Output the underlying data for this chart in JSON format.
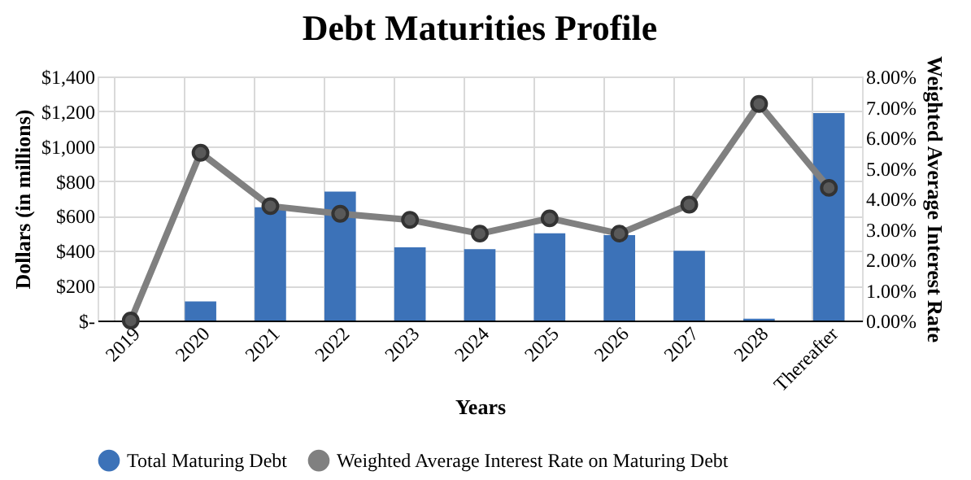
{
  "chart_data": {
    "type": "bar",
    "title": "Debt Maturities Profile",
    "xlabel": "Years",
    "ylabel": "Dollars (in millions)",
    "y2label": "Weighted Average Interest Rate",
    "categories": [
      "2019",
      "2020",
      "2021",
      "2022",
      "2023",
      "2024",
      "2025",
      "2026",
      "2027",
      "2028",
      "Thereafter"
    ],
    "series": [
      {
        "name": "Total Maturing Debt",
        "color": "#3c72b8",
        "values": [
          0,
          110,
          650,
          740,
          420,
          410,
          500,
          490,
          400,
          10,
          1190
        ]
      },
      {
        "name": "Weighted Average Interest Rate on Maturing Debt",
        "type": "line",
        "axis": "y2",
        "color": "#808080",
        "marker": "circle",
        "values": [
          0,
          5.5,
          3.75,
          3.5,
          3.3,
          2.85,
          3.35,
          2.85,
          3.8,
          7.1,
          4.35
        ]
      }
    ],
    "ylim": [
      0,
      1400
    ],
    "yticks": [
      {
        "value": 0,
        "label": "$-"
      },
      {
        "value": 200,
        "label": "$200"
      },
      {
        "value": 400,
        "label": "$400"
      },
      {
        "value": 600,
        "label": "$600"
      },
      {
        "value": 800,
        "label": "$800"
      },
      {
        "value": 1000,
        "label": "$1,000"
      },
      {
        "value": 1200,
        "label": "$1,200"
      },
      {
        "value": 1400,
        "label": "$1,400"
      }
    ],
    "y2lim": [
      0,
      8
    ],
    "y2ticks": [
      {
        "value": 0,
        "label": "0.00%"
      },
      {
        "value": 1,
        "label": "1.00%"
      },
      {
        "value": 2,
        "label": "2.00%"
      },
      {
        "value": 3,
        "label": "3.00%"
      },
      {
        "value": 4,
        "label": "4.00%"
      },
      {
        "value": 5,
        "label": "5.00%"
      },
      {
        "value": 6,
        "label": "6.00%"
      },
      {
        "value": 7,
        "label": "7.00%"
      },
      {
        "value": 8,
        "label": "8.00%"
      }
    ],
    "grid": true,
    "legend": "bottom"
  }
}
